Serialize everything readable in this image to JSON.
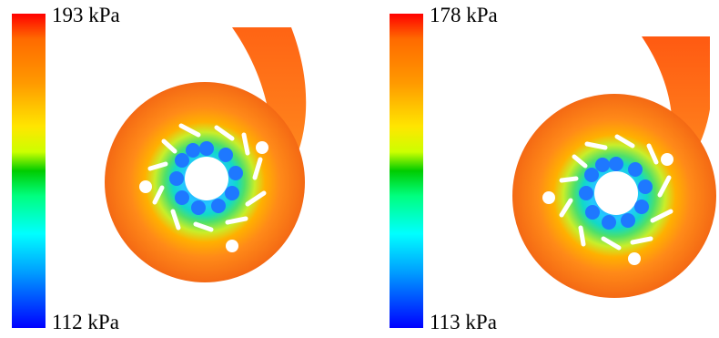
{
  "panels": [
    {
      "colorbar": {
        "max_label": "193 kPa",
        "min_label": "112 kPa",
        "colors": [
          "#ff0000",
          "#ff9900",
          "#ffe600",
          "#00cc00",
          "#00ffff",
          "#0050ff",
          "#0000ff"
        ]
      }
    },
    {
      "colorbar": {
        "max_label": "178 kPa",
        "min_label": "113 kPa",
        "colors": [
          "#ff0000",
          "#ff9900",
          "#ffe600",
          "#00cc00",
          "#00ffff",
          "#0050ff",
          "#0000ff"
        ]
      }
    }
  ]
}
